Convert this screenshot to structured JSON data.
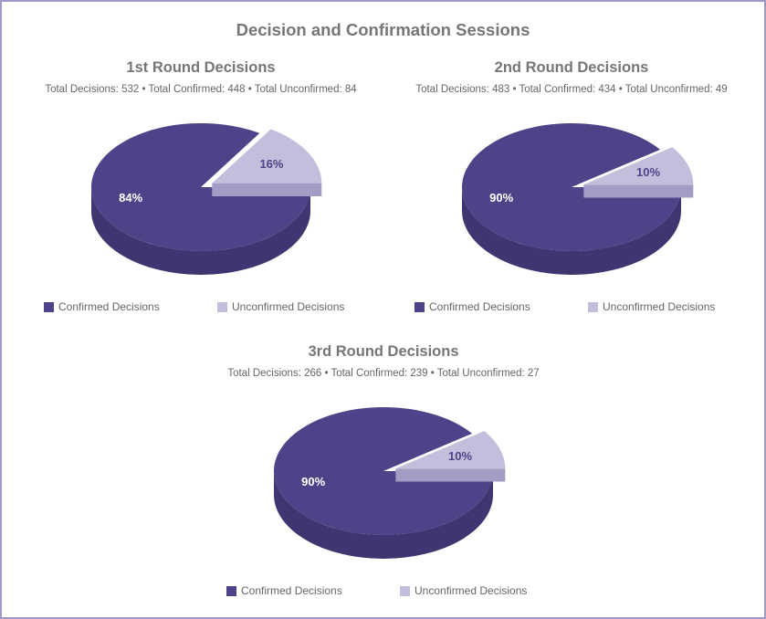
{
  "title": "Decision and Confirmation Sessions",
  "legend_labels": [
    "Confirmed Decisions",
    "Unconfirmed Decisions"
  ],
  "colors": {
    "confirmed": "#4d4388",
    "confirmed_side": "#3e3670",
    "unconfirmed": "#c2bedb",
    "unconfirmed_side": "#a39dc6",
    "frame": "#9e97c9"
  },
  "chart_data": [
    {
      "type": "pie",
      "title": "1st Round Decisions",
      "subtitle": "Total Decisions: 532 • Total Confirmed: 448 • Total Unconfirmed: 84",
      "slices": [
        {
          "name": "Confirmed Decisions",
          "value": 84,
          "label": "84%"
        },
        {
          "name": "Unconfirmed Decisions",
          "value": 16,
          "label": "16%"
        }
      ],
      "legend_position": "bottom"
    },
    {
      "type": "pie",
      "title": "2nd Round Decisions",
      "subtitle": "Total Decisions: 483 • Total Confirmed: 434 • Total Unconfirmed: 49",
      "slices": [
        {
          "name": "Confirmed Decisions",
          "value": 90,
          "label": "90%"
        },
        {
          "name": "Unconfirmed Decisions",
          "value": 10,
          "label": "10%"
        }
      ],
      "legend_position": "bottom"
    },
    {
      "type": "pie",
      "title": "3rd Round Decisions",
      "subtitle": "Total Decisions: 266 • Total Confirmed: 239 • Total Unconfirmed: 27",
      "slices": [
        {
          "name": "Confirmed Decisions",
          "value": 90,
          "label": "90%"
        },
        {
          "name": "Unconfirmed Decisions",
          "value": 10,
          "label": "10%"
        }
      ],
      "legend_position": "bottom"
    }
  ]
}
